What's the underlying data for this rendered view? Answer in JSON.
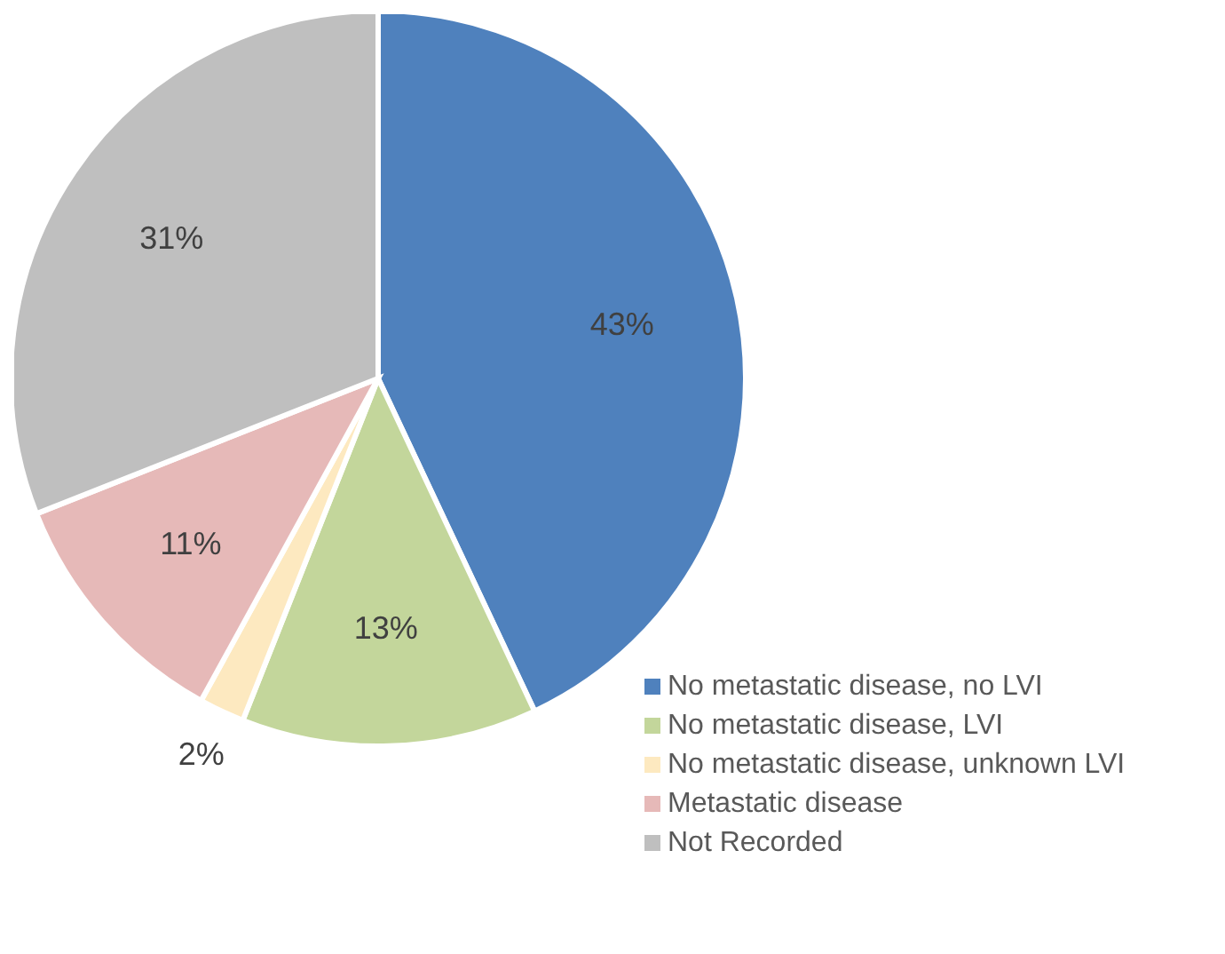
{
  "chart_data": {
    "type": "pie",
    "categories": [
      "No metastatic disease, no LVI",
      "No metastatic disease, LVI",
      "No metastatic disease, unknown LVI",
      "Metastatic disease",
      "Not Recorded"
    ],
    "values": [
      43,
      13,
      2,
      11,
      31
    ],
    "value_labels": [
      "43%",
      "13%",
      "2%",
      "11%",
      "31%"
    ],
    "colors": [
      "#4f81bd",
      "#c3d69b",
      "#fde9c0",
      "#e6b9b8",
      "#bfbfbf"
    ],
    "legend": "bottom right"
  }
}
